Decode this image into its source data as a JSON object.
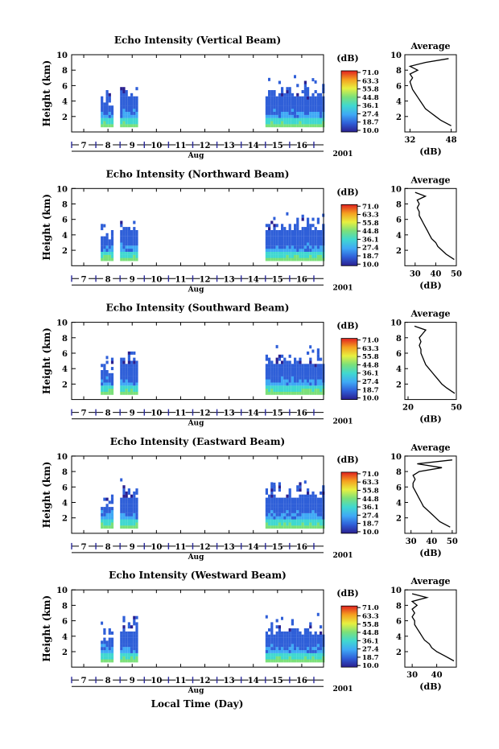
{
  "figure": {
    "xlabel": "Local Time (Day)",
    "month_label": "Aug",
    "year_label": "2001",
    "height_label": "Height (km)",
    "unit_label": "(dB)",
    "average_title": "Average",
    "colorbar_ticks": [
      "71.0",
      "63.3",
      "55.8",
      "44.8",
      "36.1",
      "27.4",
      "18.7",
      "10.0"
    ],
    "day_ticks": [
      "7",
      "8",
      "9",
      "10",
      "11",
      "12",
      "13",
      "14",
      "15",
      "16"
    ],
    "height_ticks": [
      "2",
      "4",
      "6",
      "8",
      "10"
    ],
    "colormap": [
      "#2a1f8f",
      "#2f5fd8",
      "#3fa9f5",
      "#40d8d0",
      "#7be07a",
      "#e8f040",
      "#f5a020",
      "#e02020"
    ]
  },
  "chart_data": [
    {
      "type": "heatmap",
      "title": "Echo Intensity (Vertical Beam)",
      "xlabel": "Aug",
      "ylabel": "Height (km)",
      "x_range_days": [
        6.5,
        16.9
      ],
      "ylim": [
        0,
        10
      ],
      "colorbar": {
        "label": "(dB)",
        "range": [
          10.0,
          71.0
        ]
      },
      "data_periods_days": [
        [
          7.7,
          8.2
        ],
        [
          8.5,
          9.2
        ],
        [
          14.5,
          16.9
        ]
      ],
      "echo_top_km": {
        "period1": 4.2,
        "period2": 5.4,
        "period3": 5.5
      },
      "profile": {
        "title": "Average",
        "xlabel": "(dB)",
        "xticks": [
          32,
          48
        ],
        "xlim": [
          30,
          50
        ],
        "height_km": [
          0.8,
          1.5,
          2.0,
          2.5,
          3.0,
          3.5,
          4.0,
          4.5,
          5.0,
          5.5,
          6.0,
          6.5,
          7.0,
          7.5,
          8.0,
          8.5,
          9.0,
          9.5
        ],
        "values_db": [
          48,
          44,
          42,
          40,
          38,
          37,
          36,
          35,
          34,
          33,
          32.5,
          32,
          33,
          32,
          35,
          32,
          38,
          47
        ]
      }
    },
    {
      "type": "heatmap",
      "title": "Echo Intensity (Northward Beam)",
      "xlabel": "Aug",
      "ylabel": "Height (km)",
      "x_range_days": [
        6.5,
        16.9
      ],
      "ylim": [
        0,
        10
      ],
      "colorbar": {
        "label": "(dB)",
        "range": [
          10.0,
          71.0
        ]
      },
      "data_periods_days": [
        [
          7.7,
          8.2
        ],
        [
          8.5,
          9.2
        ],
        [
          14.5,
          16.9
        ]
      ],
      "echo_top_km": {
        "period1": 4.0,
        "period2": 5.2,
        "period3": 5.2
      },
      "profile": {
        "title": "Average",
        "xlabel": "(dB)",
        "xticks": [
          30,
          40,
          50
        ],
        "xlim": [
          25,
          50
        ],
        "height_km": [
          0.8,
          1.5,
          2.0,
          2.5,
          3.0,
          3.5,
          4.0,
          4.5,
          5.0,
          5.5,
          6.0,
          6.5,
          7.0,
          7.5,
          8.0,
          8.5,
          9.0,
          9.5
        ],
        "values_db": [
          49,
          45,
          43,
          41,
          40,
          38,
          37,
          36,
          35,
          34,
          33,
          32,
          32,
          31,
          32,
          31,
          35,
          30
        ]
      }
    },
    {
      "type": "heatmap",
      "title": "Echo Intensity (Southward Beam)",
      "xlabel": "Aug",
      "ylabel": "Height (km)",
      "x_range_days": [
        6.5,
        16.9
      ],
      "ylim": [
        0,
        10
      ],
      "colorbar": {
        "label": "(dB)",
        "range": [
          10.0,
          71.0
        ]
      },
      "data_periods_days": [
        [
          7.7,
          8.2
        ],
        [
          8.5,
          9.2
        ],
        [
          14.5,
          16.9
        ]
      ],
      "echo_top_km": {
        "period1": 4.0,
        "period2": 5.3,
        "period3": 5.3
      },
      "profile": {
        "title": "Average",
        "xlabel": "(dB)",
        "xticks": [
          20,
          50
        ],
        "xlim": [
          18,
          50
        ],
        "height_km": [
          0.8,
          1.5,
          2.0,
          2.5,
          3.0,
          3.5,
          4.0,
          4.5,
          5.0,
          5.5,
          6.0,
          6.5,
          7.0,
          7.5,
          8.0,
          8.5,
          9.0,
          9.5
        ],
        "values_db": [
          49,
          44,
          41,
          39,
          37,
          35,
          33,
          31,
          30,
          29,
          28,
          28,
          27,
          28,
          27,
          29,
          31,
          24
        ]
      }
    },
    {
      "type": "heatmap",
      "title": "Echo Intensity (Eastward Beam)",
      "xlabel": "Aug",
      "ylabel": "Height (km)",
      "x_range_days": [
        6.5,
        16.9
      ],
      "ylim": [
        0,
        10
      ],
      "colorbar": {
        "label": "(dB)",
        "range": [
          10.0,
          71.0
        ]
      },
      "data_periods_days": [
        [
          7.7,
          8.2
        ],
        [
          8.5,
          9.2
        ],
        [
          14.5,
          16.9
        ]
      ],
      "echo_top_km": {
        "period1": 4.1,
        "period2": 5.3,
        "period3": 5.4
      },
      "profile": {
        "title": "Average",
        "xlabel": "(dB)",
        "xticks": [
          30,
          40,
          50
        ],
        "xlim": [
          27,
          52
        ],
        "height_km": [
          0.8,
          1.5,
          2.0,
          2.5,
          3.0,
          3.5,
          4.0,
          4.5,
          5.0,
          5.5,
          6.0,
          6.5,
          7.0,
          7.5,
          8.0,
          8.5,
          9.0,
          9.5
        ],
        "values_db": [
          49,
          44,
          42,
          40,
          38,
          36,
          35,
          34,
          33,
          32,
          31,
          31,
          32,
          31,
          34,
          45,
          33,
          50
        ]
      }
    },
    {
      "type": "heatmap",
      "title": "Echo Intensity (Westward Beam)",
      "xlabel": "Aug",
      "ylabel": "Height (km)",
      "x_range_days": [
        6.5,
        16.9
      ],
      "ylim": [
        0,
        10
      ],
      "colorbar": {
        "label": "(dB)",
        "range": [
          10.0,
          71.0
        ]
      },
      "data_periods_days": [
        [
          7.7,
          8.2
        ],
        [
          8.5,
          9.2
        ],
        [
          14.5,
          16.9
        ]
      ],
      "echo_top_km": {
        "period1": 4.0,
        "period2": 5.3,
        "period3": 5.1
      },
      "profile": {
        "title": "Average",
        "xlabel": "(dB)",
        "xticks": [
          30,
          40
        ],
        "xlim": [
          27,
          48
        ],
        "height_km": [
          0.8,
          1.5,
          2.0,
          2.5,
          3.0,
          3.5,
          4.0,
          4.5,
          5.0,
          5.5,
          6.0,
          6.5,
          7.0,
          7.5,
          8.0,
          8.5,
          9.0,
          9.5
        ],
        "values_db": [
          47,
          43,
          40,
          38,
          37,
          35,
          34,
          33,
          32,
          31,
          31,
          30,
          31,
          30,
          32,
          30,
          36,
          30
        ]
      }
    }
  ]
}
